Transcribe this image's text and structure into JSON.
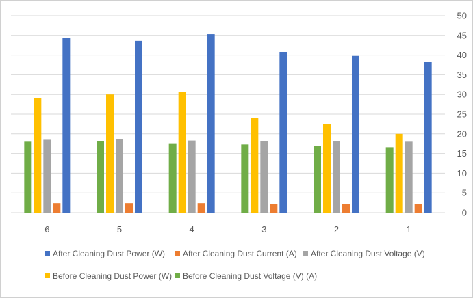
{
  "chart_data": {
    "type": "bar",
    "categories": [
      "6",
      "5",
      "4",
      "3",
      "2",
      "1"
    ],
    "series": [
      {
        "name": "Before Cleaning Dust Voltage (V) (A)",
        "color": "#70ad47",
        "values": [
          18.0,
          18.2,
          17.6,
          17.3,
          17.0,
          16.6
        ]
      },
      {
        "name": "Before Cleaning Dust Power (W)",
        "color": "#ffc000",
        "values": [
          29.0,
          30.0,
          30.7,
          24.1,
          22.5,
          20.0
        ]
      },
      {
        "name": "After Cleaning Dust Voltage (V)",
        "color": "#a5a5a5",
        "values": [
          18.5,
          18.7,
          18.3,
          18.2,
          18.2,
          18.0
        ]
      },
      {
        "name": "After Cleaning Dust Current (A)",
        "color": "#ed7d31",
        "values": [
          2.4,
          2.4,
          2.4,
          2.2,
          2.2,
          2.1
        ]
      },
      {
        "name": "After Cleaning Dust Power (W)",
        "color": "#4472c4",
        "values": [
          44.4,
          43.6,
          45.3,
          40.8,
          39.8,
          38.2
        ]
      }
    ],
    "y_ticks": [
      "0",
      "5",
      "10",
      "15",
      "20",
      "25",
      "30",
      "35",
      "40",
      "45",
      "50"
    ],
    "ylim": [
      0,
      50
    ],
    "y_axis_side": "right",
    "grid": true,
    "legend_position": "bottom",
    "legend_order": [
      4,
      3,
      2,
      1,
      0
    ]
  }
}
